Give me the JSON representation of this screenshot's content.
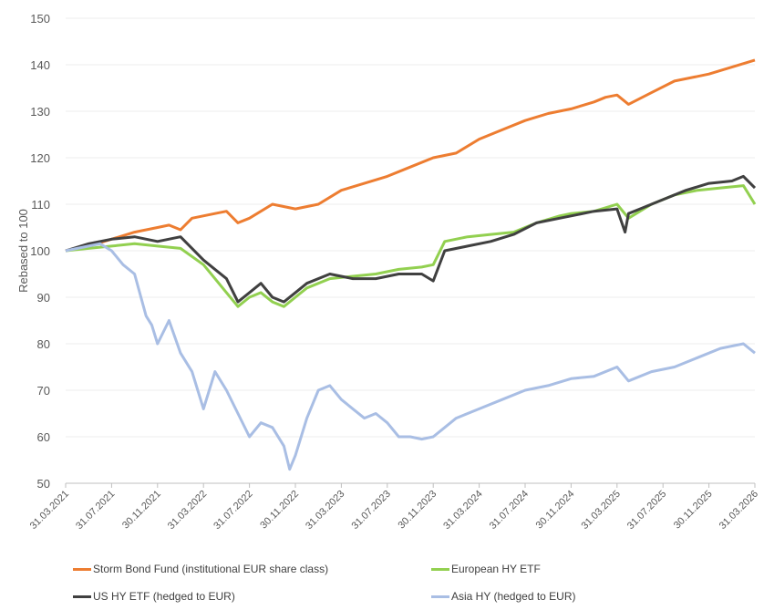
{
  "chart_data": {
    "type": "line",
    "title": "",
    "xlabel": "",
    "ylabel": "Rebased to 100",
    "ylim": [
      50,
      150
    ],
    "yticks": [
      "50",
      "60",
      "70",
      "80",
      "90",
      "100",
      "110",
      "120",
      "130",
      "140",
      "150"
    ],
    "x_unit": "months since 31.03.2021",
    "xlim": [
      0,
      60
    ],
    "xtick_labels": [
      "31.03.2021",
      "31.07.2021",
      "30.11.2021",
      "31.03.2022",
      "31.07.2022",
      "30.11.2022",
      "31.03.2023",
      "31.07.2023",
      "30.11.2023",
      "31.03.2024",
      "31.07.2024",
      "30.11.2024",
      "31.03.2025",
      "31.07.2025",
      "30.11.2025",
      "31.03.2026"
    ],
    "grid": true,
    "legend_position": "bottom",
    "series": [
      {
        "name": "Storm Bond Fund (institutional EUR share class)",
        "color": "#ED7D31",
        "points": [
          [
            0,
            100
          ],
          [
            2,
            101
          ],
          [
            4,
            102.5
          ],
          [
            6,
            104
          ],
          [
            8,
            105
          ],
          [
            9,
            105.5
          ],
          [
            10,
            104.5
          ],
          [
            11,
            107
          ],
          [
            13,
            108
          ],
          [
            14,
            108.5
          ],
          [
            15,
            106
          ],
          [
            16,
            107
          ],
          [
            18,
            110
          ],
          [
            20,
            109
          ],
          [
            22,
            110
          ],
          [
            24,
            113
          ],
          [
            26,
            114.5
          ],
          [
            28,
            116
          ],
          [
            30,
            118
          ],
          [
            32,
            120
          ],
          [
            34,
            121
          ],
          [
            36,
            124
          ],
          [
            38,
            126
          ],
          [
            40,
            128
          ],
          [
            42,
            129.5
          ],
          [
            44,
            130.5
          ],
          [
            46,
            132
          ],
          [
            47,
            133
          ],
          [
            48,
            133.5
          ],
          [
            49,
            131.5
          ],
          [
            51,
            134
          ],
          [
            53,
            136.5
          ],
          [
            55,
            137.5
          ],
          [
            56,
            138
          ],
          [
            58,
            139.5
          ],
          [
            60,
            141
          ]
        ]
      },
      {
        "name": "European HY ETF",
        "color": "#92D050",
        "points": [
          [
            0,
            100
          ],
          [
            2,
            100.5
          ],
          [
            4,
            101
          ],
          [
            6,
            101.5
          ],
          [
            8,
            101
          ],
          [
            10,
            100.5
          ],
          [
            12,
            97
          ],
          [
            13,
            94
          ],
          [
            14,
            91
          ],
          [
            15,
            88
          ],
          [
            16,
            90
          ],
          [
            17,
            91
          ],
          [
            18,
            89
          ],
          [
            19,
            88
          ],
          [
            20,
            90
          ],
          [
            21,
            92
          ],
          [
            23,
            94
          ],
          [
            25,
            94.5
          ],
          [
            27,
            95
          ],
          [
            29,
            96
          ],
          [
            31,
            96.5
          ],
          [
            32,
            97
          ],
          [
            33,
            102
          ],
          [
            35,
            103
          ],
          [
            37,
            103.5
          ],
          [
            39,
            104
          ],
          [
            41,
            106
          ],
          [
            43,
            107.5
          ],
          [
            44,
            108
          ],
          [
            46,
            108.5
          ],
          [
            48,
            110
          ],
          [
            49,
            107
          ],
          [
            51,
            110
          ],
          [
            53,
            112
          ],
          [
            55,
            113
          ],
          [
            57,
            113.5
          ],
          [
            59,
            114
          ],
          [
            60,
            110
          ]
        ]
      },
      {
        "name": "US HY ETF (hedged to EUR)",
        "color": "#404040",
        "points": [
          [
            0,
            100
          ],
          [
            2,
            101.5
          ],
          [
            4,
            102.5
          ],
          [
            6,
            103
          ],
          [
            8,
            102
          ],
          [
            10,
            103
          ],
          [
            12,
            98
          ],
          [
            13,
            96
          ],
          [
            14,
            94
          ],
          [
            15,
            89
          ],
          [
            16,
            91
          ],
          [
            17,
            93
          ],
          [
            18,
            90
          ],
          [
            19,
            89
          ],
          [
            20,
            91
          ],
          [
            21,
            93
          ],
          [
            23,
            95
          ],
          [
            25,
            94
          ],
          [
            27,
            94
          ],
          [
            29,
            95
          ],
          [
            31,
            95
          ],
          [
            32,
            93.5
          ],
          [
            33,
            100
          ],
          [
            35,
            101
          ],
          [
            37,
            102
          ],
          [
            39,
            103.5
          ],
          [
            41,
            106
          ],
          [
            43,
            107
          ],
          [
            44,
            107.5
          ],
          [
            46,
            108.5
          ],
          [
            48,
            109
          ],
          [
            48.7,
            104
          ],
          [
            49,
            108
          ],
          [
            50,
            109
          ],
          [
            52,
            111
          ],
          [
            54,
            113
          ],
          [
            56,
            114.5
          ],
          [
            58,
            115
          ],
          [
            59,
            116
          ],
          [
            60,
            113.5
          ]
        ]
      },
      {
        "name": "Asia HY (hedged to EUR)",
        "color": "#A9BEE4",
        "points": [
          [
            0,
            100
          ],
          [
            2,
            101
          ],
          [
            3,
            101.5
          ],
          [
            4,
            100
          ],
          [
            5,
            97
          ],
          [
            6,
            95
          ],
          [
            7,
            86
          ],
          [
            7.5,
            84
          ],
          [
            8,
            80
          ],
          [
            9,
            85
          ],
          [
            10,
            78
          ],
          [
            11,
            74
          ],
          [
            11.5,
            70
          ],
          [
            12,
            66
          ],
          [
            13,
            74
          ],
          [
            14,
            70
          ],
          [
            15,
            65
          ],
          [
            16,
            60
          ],
          [
            17,
            63
          ],
          [
            18,
            62
          ],
          [
            19,
            58
          ],
          [
            19.5,
            53
          ],
          [
            20,
            56
          ],
          [
            21,
            64
          ],
          [
            22,
            70
          ],
          [
            23,
            71
          ],
          [
            24,
            68
          ],
          [
            25,
            66
          ],
          [
            26,
            64
          ],
          [
            27,
            65
          ],
          [
            28,
            63
          ],
          [
            29,
            60
          ],
          [
            30,
            60
          ],
          [
            31,
            59.5
          ],
          [
            32,
            60
          ],
          [
            33,
            62
          ],
          [
            34,
            64
          ],
          [
            36,
            66
          ],
          [
            38,
            68
          ],
          [
            40,
            70
          ],
          [
            42,
            71
          ],
          [
            44,
            72.5
          ],
          [
            46,
            73
          ],
          [
            48,
            75
          ],
          [
            49,
            72
          ],
          [
            51,
            74
          ],
          [
            53,
            75
          ],
          [
            55,
            77
          ],
          [
            57,
            79
          ],
          [
            59,
            80
          ],
          [
            60,
            78
          ]
        ]
      }
    ]
  }
}
